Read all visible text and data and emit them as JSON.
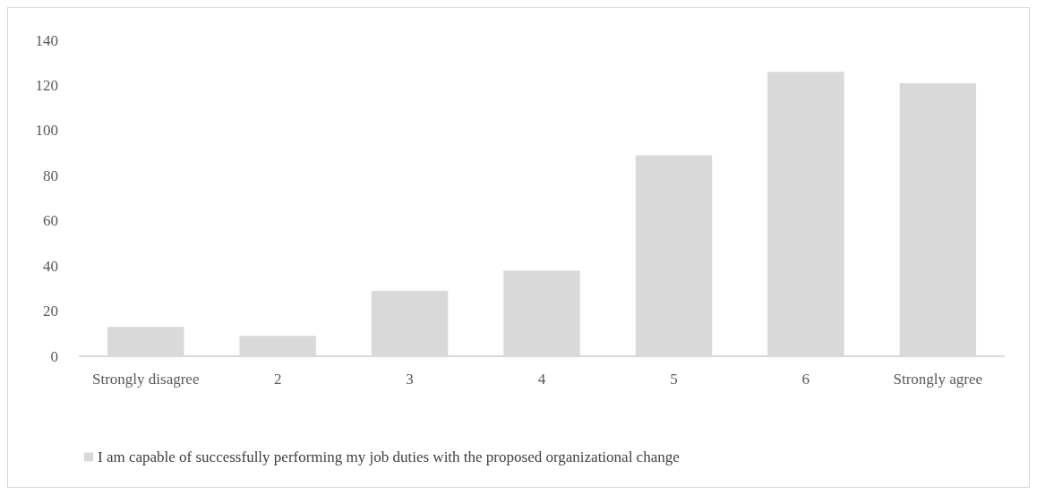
{
  "chart_data": {
    "type": "bar",
    "categories": [
      "Strongly disagree",
      "2",
      "3",
      "4",
      "5",
      "6",
      "Strongly agree"
    ],
    "series": [
      {
        "name": "I am capable of successfully performing my job duties with the proposed organizational change",
        "color": "#d9d9d9",
        "values": [
          13,
          9,
          29,
          38,
          89,
          126,
          121
        ]
      }
    ],
    "ylim": [
      0,
      140
    ],
    "yticks": [
      0,
      20,
      40,
      60,
      80,
      100,
      120,
      140
    ],
    "grid": false,
    "legend": "bottom left"
  }
}
